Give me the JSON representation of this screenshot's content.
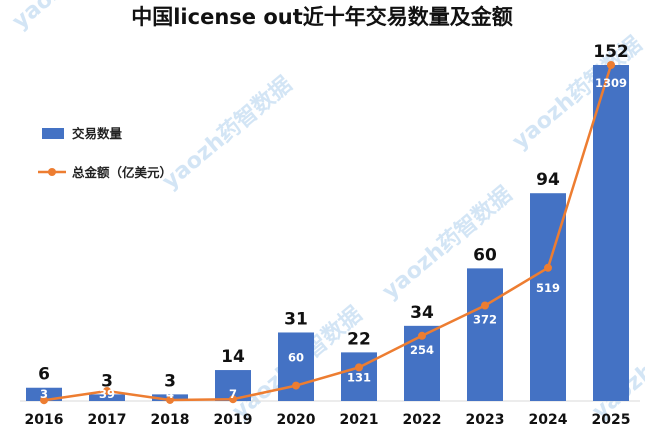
{
  "chart_data": {
    "type": "bar",
    "title": "中国license out近十年交易数量及金额",
    "categories": [
      "2016",
      "2017",
      "2018",
      "2019",
      "2020",
      "2021",
      "2022",
      "2023",
      "2024",
      "2025"
    ],
    "series": [
      {
        "name": "交易数量",
        "type": "bar",
        "color": "#4472C4",
        "values": [
          6,
          3,
          3,
          14,
          31,
          22,
          34,
          60,
          94,
          152
        ]
      },
      {
        "name": "总金额（亿美元）",
        "type": "line",
        "color": "#ED7D31",
        "values": [
          3,
          39,
          4,
          7,
          60,
          131,
          254,
          372,
          519,
          1309
        ]
      }
    ],
    "legend_position": "left",
    "grid": false
  },
  "watermark": {
    "text": "yaozh药智数据",
    "color": "#cfe3f5"
  }
}
